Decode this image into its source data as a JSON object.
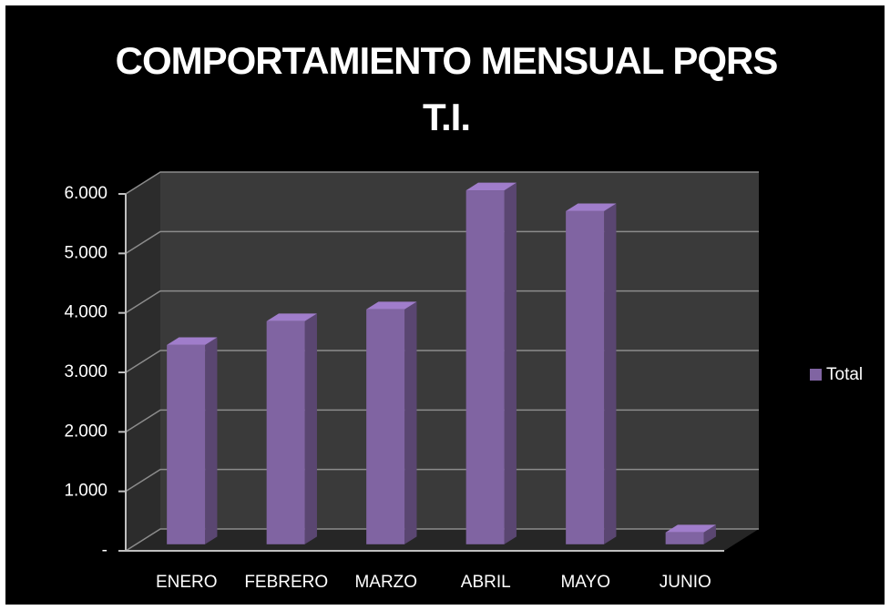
{
  "chart_data": {
    "type": "bar",
    "title": "COMPORTAMIENTO MENSUAL PQRS T.I.",
    "categories": [
      "ENERO",
      "FEBRERO",
      "MARZO",
      "ABRIL",
      "MAYO",
      "JUNIO"
    ],
    "series": [
      {
        "name": "Total",
        "color": "#8064a2",
        "values": [
          3350,
          3750,
          3950,
          5950,
          5600,
          200
        ]
      }
    ],
    "ylim": [
      0,
      6000
    ],
    "yticks": [
      {
        "value": 0,
        "label": "-"
      },
      {
        "value": 1000,
        "label": "1.000"
      },
      {
        "value": 2000,
        "label": "2.000"
      },
      {
        "value": 3000,
        "label": "3.000"
      },
      {
        "value": 4000,
        "label": "4.000"
      },
      {
        "value": 5000,
        "label": "5.000"
      },
      {
        "value": 6000,
        "label": "6.000"
      }
    ],
    "grid": true,
    "legend": "right"
  }
}
